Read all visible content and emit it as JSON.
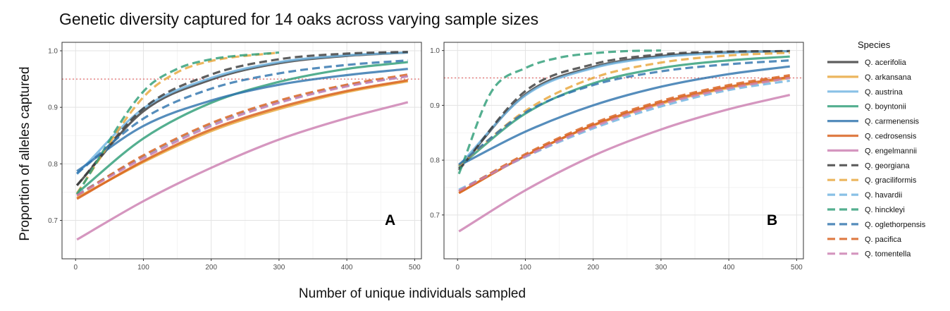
{
  "title": "Genetic diversity captured for 14 oaks across varying sample sizes",
  "xlabel": "Number of unique individuals sampled",
  "ylabel": "Proportion of alleles captured",
  "legend_title": "Species",
  "colors": {
    "Q. acerifolia": "#3a3a3a",
    "Q. arkansana": "#e8a63a",
    "Q. austrina": "#6fb3e0",
    "Q. boyntonii": "#2e9e78",
    "Q. carmenensis": "#2f74ad",
    "Q. cedrosensis": "#d85f1c",
    "Q. engelmannii": "#cc7fb1",
    "Q. georgiana": "#3a3a3a",
    "Q. graciliformis": "#e8a63a",
    "Q. havardii": "#6fb3e0",
    "Q. hinckleyi": "#2e9e78",
    "Q. oglethorpensis": "#2f74ad",
    "Q. pacifica": "#d85f1c",
    "Q. tomentella": "#cc7fb1"
  },
  "chart_data": [
    {
      "type": "line",
      "panel_label": "A",
      "xlim": [
        -20,
        510
      ],
      "ylim": [
        0.632,
        1.015
      ],
      "x_ticks": [
        0,
        100,
        200,
        300,
        400,
        500
      ],
      "y_ticks": [
        0.7,
        0.8,
        0.9,
        1.0
      ],
      "y_tick_labels": [
        "0.7",
        "0.8",
        "0.9",
        "1.0"
      ],
      "grid": true,
      "reference_line": {
        "y": 0.95,
        "style": "dotted",
        "color": "#e06a6a"
      },
      "series": [
        {
          "name": "Q. acerifolia",
          "dash": "solid",
          "x": [
            2,
            100,
            200,
            300,
            400,
            490
          ],
          "y": [
            0.762,
            0.893,
            0.949,
            0.978,
            0.991,
            0.997
          ]
        },
        {
          "name": "Q. arkansana",
          "dash": "solid",
          "x": [
            2,
            100,
            200,
            300,
            400,
            490
          ],
          "y": [
            0.74,
            0.803,
            0.858,
            0.897,
            0.927,
            0.946
          ]
        },
        {
          "name": "Q. austrina",
          "dash": "solid",
          "x": [
            2,
            100,
            200,
            300,
            400,
            490
          ],
          "y": [
            0.782,
            0.898,
            0.952,
            0.98,
            0.992,
            0.997
          ]
        },
        {
          "name": "Q. boyntonii",
          "dash": "solid",
          "x": [
            2,
            100,
            200,
            300,
            400,
            490
          ],
          "y": [
            0.748,
            0.845,
            0.908,
            0.945,
            0.968,
            0.98
          ]
        },
        {
          "name": "Q. carmenensis",
          "dash": "solid",
          "x": [
            2,
            100,
            200,
            300,
            400,
            490
          ],
          "y": [
            0.787,
            0.867,
            0.912,
            0.94,
            0.957,
            0.968
          ]
        },
        {
          "name": "Q. cedrosensis",
          "dash": "solid",
          "x": [
            2,
            100,
            200,
            300,
            400,
            490
          ],
          "y": [
            0.738,
            0.805,
            0.861,
            0.9,
            0.929,
            0.948
          ]
        },
        {
          "name": "Q. engelmannii",
          "dash": "solid",
          "x": [
            2,
            100,
            200,
            300,
            400,
            490
          ],
          "y": [
            0.666,
            0.734,
            0.793,
            0.843,
            0.881,
            0.909
          ]
        },
        {
          "name": "Q. georgiana",
          "dash": "dashed",
          "x": [
            2,
            100,
            200,
            300,
            400,
            490
          ],
          "y": [
            0.762,
            0.898,
            0.958,
            0.985,
            0.995,
            0.998
          ]
        },
        {
          "name": "Q. graciliformis",
          "dash": "dashed",
          "x": [
            2,
            100,
            150,
            200,
            300
          ],
          "y": [
            0.748,
            0.918,
            0.962,
            0.982,
            0.997
          ]
        },
        {
          "name": "Q. havardii",
          "dash": "dashed",
          "x": [
            2,
            100,
            200,
            300,
            400,
            490
          ],
          "y": [
            0.746,
            0.812,
            0.869,
            0.909,
            0.938,
            0.955
          ]
        },
        {
          "name": "Q. hinckleyi",
          "dash": "dashed",
          "x": [
            2,
            100,
            150,
            200,
            300
          ],
          "y": [
            0.746,
            0.928,
            0.968,
            0.985,
            0.997
          ]
        },
        {
          "name": "Q. oglethorpensis",
          "dash": "dashed",
          "x": [
            2,
            100,
            200,
            300,
            400,
            490
          ],
          "y": [
            0.783,
            0.88,
            0.933,
            0.96,
            0.975,
            0.983
          ]
        },
        {
          "name": "Q. pacifica",
          "dash": "dashed",
          "x": [
            2,
            100,
            200,
            300,
            400,
            490
          ],
          "y": [
            0.744,
            0.815,
            0.872,
            0.912,
            0.94,
            0.958
          ]
        },
        {
          "name": "Q. tomentella",
          "dash": "dashed",
          "x": [
            2,
            100,
            200,
            300,
            400,
            490
          ],
          "y": [
            0.744,
            0.81,
            0.867,
            0.908,
            0.937,
            0.955
          ]
        }
      ]
    },
    {
      "type": "line",
      "panel_label": "B",
      "xlim": [
        -20,
        510
      ],
      "ylim": [
        0.62,
        1.015
      ],
      "x_ticks": [
        0,
        100,
        200,
        300,
        400,
        500
      ],
      "y_ticks": [
        0.7,
        0.8,
        0.9,
        1.0
      ],
      "y_tick_labels": [
        "0.7",
        "0.8",
        "0.9",
        "1.0"
      ],
      "grid": true,
      "reference_line": {
        "y": 0.95,
        "style": "dotted",
        "color": "#e06a6a"
      },
      "series": [
        {
          "name": "Q. acerifolia",
          "dash": "solid",
          "x": [
            2,
            100,
            200,
            300,
            400,
            490
          ],
          "y": [
            0.785,
            0.92,
            0.97,
            0.99,
            0.997,
            0.999
          ]
        },
        {
          "name": "Q. arkansana",
          "dash": "solid",
          "x": [
            2,
            100,
            200,
            300,
            400,
            490
          ],
          "y": [
            0.74,
            0.808,
            0.863,
            0.903,
            0.932,
            0.95
          ]
        },
        {
          "name": "Q. austrina",
          "dash": "solid",
          "x": [
            2,
            100,
            200,
            300,
            400,
            490
          ],
          "y": [
            0.79,
            0.918,
            0.968,
            0.988,
            0.996,
            0.999
          ]
        },
        {
          "name": "Q. boyntonii",
          "dash": "solid",
          "x": [
            2,
            100,
            200,
            300,
            400,
            490
          ],
          "y": [
            0.788,
            0.885,
            0.94,
            0.968,
            0.982,
            0.989
          ]
        },
        {
          "name": "Q. carmenensis",
          "dash": "solid",
          "x": [
            2,
            100,
            200,
            300,
            400,
            490
          ],
          "y": [
            0.79,
            0.852,
            0.9,
            0.934,
            0.957,
            0.971
          ]
        },
        {
          "name": "Q. cedrosensis",
          "dash": "solid",
          "x": [
            2,
            100,
            200,
            300,
            400,
            490
          ],
          "y": [
            0.74,
            0.808,
            0.864,
            0.905,
            0.934,
            0.952
          ]
        },
        {
          "name": "Q. engelmannii",
          "dash": "solid",
          "x": [
            2,
            100,
            200,
            300,
            400,
            490
          ],
          "y": [
            0.67,
            0.745,
            0.808,
            0.856,
            0.893,
            0.919
          ]
        },
        {
          "name": "Q. georgiana",
          "dash": "dashed",
          "x": [
            2,
            100,
            200,
            300,
            400,
            490
          ],
          "y": [
            0.782,
            0.926,
            0.975,
            0.993,
            0.998,
            0.999
          ]
        },
        {
          "name": "Q. graciliformis",
          "dash": "dashed",
          "x": [
            2,
            100,
            200,
            300,
            400,
            490
          ],
          "y": [
            0.79,
            0.89,
            0.95,
            0.978,
            0.991,
            0.996
          ]
        },
        {
          "name": "Q. havardii",
          "dash": "dashed",
          "x": [
            2,
            100,
            200,
            300,
            400,
            490
          ],
          "y": [
            0.746,
            0.806,
            0.858,
            0.898,
            0.928,
            0.945
          ]
        },
        {
          "name": "Q. hinckleyi",
          "dash": "dashed",
          "x": [
            2,
            50,
            100,
            150,
            200,
            250,
            300
          ],
          "y": [
            0.775,
            0.925,
            0.968,
            0.987,
            0.995,
            0.999,
            1.0
          ]
        },
        {
          "name": "Q. oglethorpensis",
          "dash": "dashed",
          "x": [
            2,
            100,
            200,
            300,
            400,
            490
          ],
          "y": [
            0.792,
            0.887,
            0.937,
            0.962,
            0.975,
            0.982
          ]
        },
        {
          "name": "Q. pacifica",
          "dash": "dashed",
          "x": [
            2,
            100,
            200,
            300,
            400,
            490
          ],
          "y": [
            0.743,
            0.811,
            0.867,
            0.908,
            0.937,
            0.955
          ]
        },
        {
          "name": "Q. tomentella",
          "dash": "dashed",
          "x": [
            2,
            100,
            200,
            300,
            400,
            490
          ],
          "y": [
            0.744,
            0.807,
            0.861,
            0.902,
            0.931,
            0.95
          ]
        }
      ]
    }
  ]
}
